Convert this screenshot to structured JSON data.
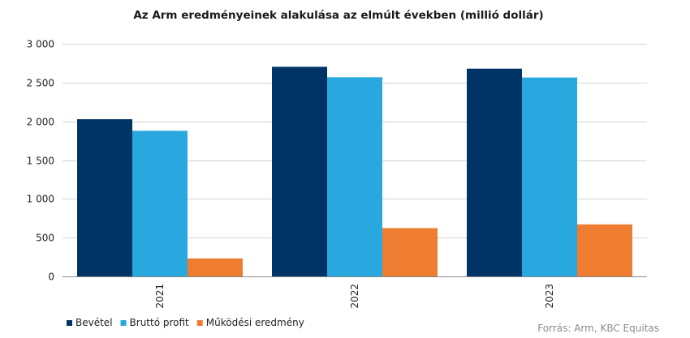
{
  "chart_data": {
    "type": "bar",
    "title": "Az Arm eredményeinek  alakulása az elmúlt  években (millió dollár)",
    "xlabel": "",
    "ylabel": "",
    "categories": [
      "2021",
      "2022",
      "2023"
    ],
    "series": [
      {
        "name": "Bevétel",
        "color": "#003366",
        "values": [
          2027,
          2703,
          2679
        ]
      },
      {
        "name": "Bruttó profit",
        "color": "#29a8e0",
        "values": [
          1878,
          2568,
          2565
        ]
      },
      {
        "name": "Működési eredmény",
        "color": "#ee7d31",
        "values": [
          232,
          623,
          671
        ]
      }
    ],
    "ylim": [
      0,
      3000
    ],
    "yticks": [
      0,
      500,
      1000,
      1500,
      2000,
      2500,
      3000
    ],
    "ytick_labels": [
      "0",
      "500",
      "1 000",
      "1 500",
      "2 000",
      "2 500",
      "3 000"
    ],
    "grid": true,
    "legend_position": "bottom-left"
  },
  "source": "Forrás: Arm, KBC Equitas"
}
